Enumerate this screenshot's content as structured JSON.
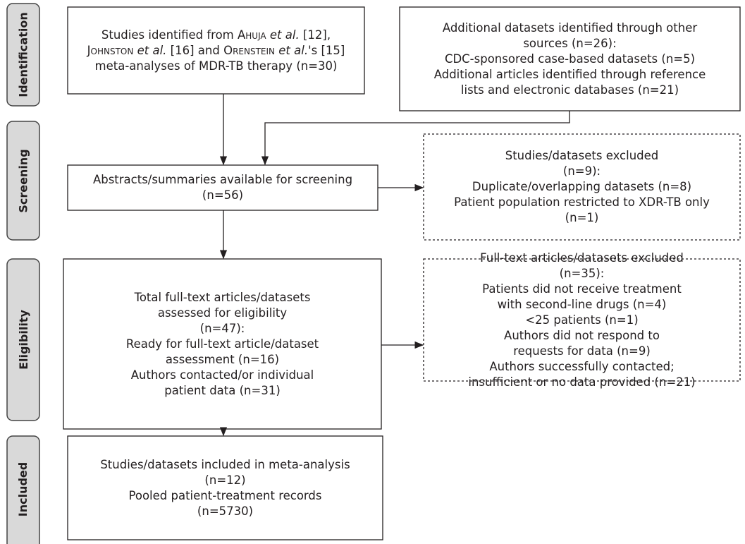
{
  "stages": [
    "Identification",
    "Screening",
    "Eligibility",
    "Included"
  ],
  "boxes": [
    {
      "lines": [
        [
          "Studies identified from",
          "Ahuja",
          "et al.",
          "[12],"
        ],
        [
          "Johnston",
          "et al.",
          "[16] and",
          "Orenstein",
          "et al.",
          "'s [15]"
        ],
        [
          "meta-analyses of MDR-TB therapy (n=30)"
        ]
      ]
    },
    {
      "lines": [
        "Additional datasets identified through other",
        "sources (n=26):",
        "CDC-sponsored case-based datasets (n=5)",
        "Additional articles identified through reference",
        "lists and electronic databases (n=21)"
      ]
    },
    {
      "lines": [
        "Abstracts/summaries available for screening",
        "(n=56)"
      ]
    },
    {
      "lines": [
        "Studies/datasets excluded",
        "(n=9):",
        "Duplicate/overlapping datasets (n=8)",
        "Patient population restricted to XDR-TB only",
        "(n=1)"
      ]
    },
    {
      "lines": [
        "Total full-text articles/datasets",
        "assessed for eligibility",
        "(n=47):",
        "Ready for full-text article/dataset",
        "assessment (n=16)",
        "Authors contacted/or individual",
        "patient data (n=31)"
      ]
    },
    {
      "lines": [
        "Full-text articles/datasets excluded",
        "(n=35):",
        "Patients did not receive treatment",
        "with second-line drugs (n=4)",
        "<25 patients (n=1)",
        "Authors did not respond to",
        "requests for data (n=9)",
        "Authors successfully contacted;",
        "insufficient or no data provided (n=21)"
      ]
    },
    {
      "lines": [
        "Studies/datasets included in meta-analysis",
        "(n=12)",
        "Pooled patient-treatment records",
        "(n=5730)"
      ]
    }
  ]
}
